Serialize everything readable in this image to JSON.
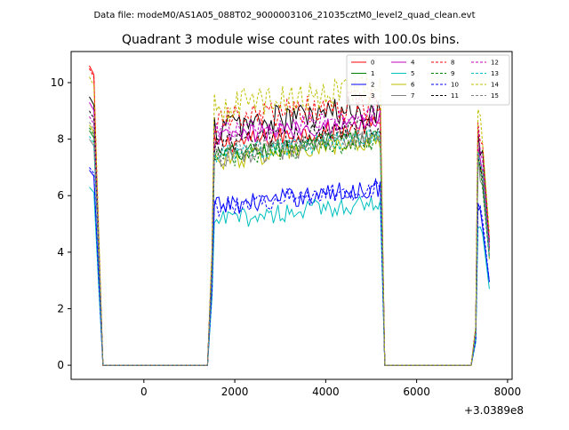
{
  "header": {
    "data_file": "Data file: modeM0/AS1A05_088T02_9000003106_21035cztM0_level2_quad_clean.evt"
  },
  "chart_data": {
    "type": "line",
    "title": "Quadrant 3 module wise count rates with 100.0s bins.",
    "xlabel": "",
    "ylabel": "",
    "offset_text": "+3.0389e8",
    "xlim": [
      -1600,
      8100
    ],
    "ylim": [
      -0.5,
      11.1
    ],
    "xticks": [
      0,
      2000,
      4000,
      6000,
      8000
    ],
    "yticks": [
      0,
      2,
      4,
      6,
      8,
      10
    ],
    "grid": false,
    "legend": {
      "placement": "top-right",
      "columns": 4
    },
    "segments": {
      "seg1": {
        "start": -1200,
        "end": -1000,
        "values_at": [
          -1200,
          -1100,
          -1000
        ]
      },
      "gap1": {
        "start": -900,
        "end": 1400
      },
      "seg2": {
        "start": 1500,
        "end": 5200
      },
      "gap2": {
        "start": 5300,
        "end": 7200
      },
      "seg3": {
        "start": 7300,
        "end": 7600
      }
    },
    "series": [
      {
        "name": "0",
        "color": "#ff0000",
        "dashed": false,
        "level": 8.1,
        "start": 10.6
      },
      {
        "name": "1",
        "color": "#008000",
        "dashed": false,
        "level": 7.7,
        "start": 8.3
      },
      {
        "name": "2",
        "color": "#0000ff",
        "dashed": false,
        "level": 5.9,
        "start": 6.9
      },
      {
        "name": "3",
        "color": "#000000",
        "dashed": false,
        "level": 8.7,
        "start": 9.5
      },
      {
        "name": "4",
        "color": "#bf00bf",
        "dashed": false,
        "level": 8.3,
        "start": 9.3
      },
      {
        "name": "5",
        "color": "#00bfbf",
        "dashed": false,
        "level": 5.4,
        "start": 6.3
      },
      {
        "name": "6",
        "color": "#bfbf00",
        "dashed": false,
        "level": 7.5,
        "start": 8.5
      },
      {
        "name": "7",
        "color": "#808080",
        "dashed": false,
        "level": 7.6,
        "start": 8.0
      },
      {
        "name": "8",
        "color": "#ff0000",
        "dashed": true,
        "level": 8.9,
        "start": 10.5
      },
      {
        "name": "9",
        "color": "#008000",
        "dashed": true,
        "level": 7.6,
        "start": 8.4
      },
      {
        "name": "10",
        "color": "#0000ff",
        "dashed": true,
        "level": 5.9,
        "start": 7.0
      },
      {
        "name": "11",
        "color": "#000000",
        "dashed": true,
        "level": 8.1,
        "start": 9.0
      },
      {
        "name": "12",
        "color": "#bf00bf",
        "dashed": true,
        "level": 8.5,
        "start": 8.8
      },
      {
        "name": "13",
        "color": "#00bfbf",
        "dashed": true,
        "level": 7.7,
        "start": 8.1
      },
      {
        "name": "14",
        "color": "#bfbf00",
        "dashed": true,
        "level": 9.4,
        "start": 10.2
      },
      {
        "name": "15",
        "color": "#808080",
        "dashed": true,
        "level": 7.8,
        "start": 8.6
      }
    ]
  }
}
